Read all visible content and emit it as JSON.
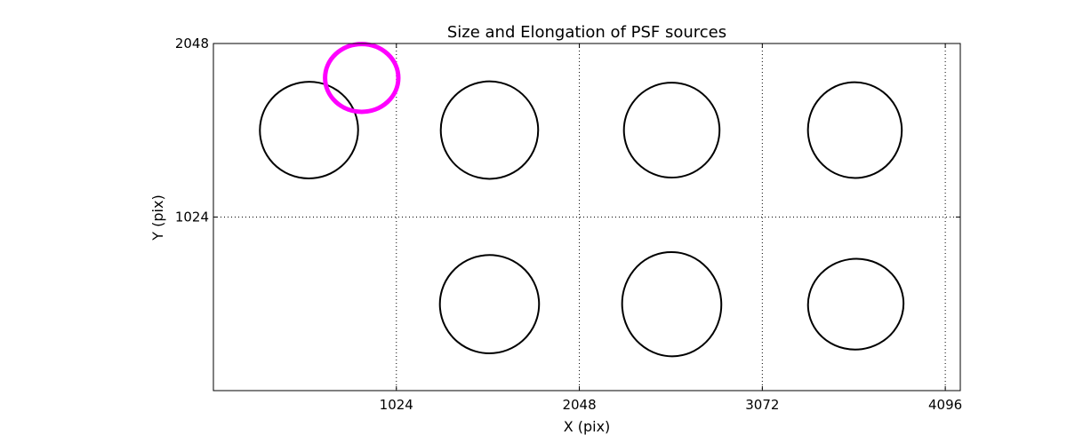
{
  "chart_data": {
    "type": "scatter",
    "title": "Size and Elongation of PSF sources",
    "xlabel": "X (pix)",
    "ylabel": "Y (pix)",
    "xlim": [
      0,
      4180
    ],
    "ylim": [
      0,
      2048
    ],
    "xticks": [
      1024,
      2048,
      3072,
      4096
    ],
    "yticks": [
      1024,
      2048
    ],
    "grid": true,
    "grid_style": "dotted",
    "sources": [
      {
        "x": 535,
        "y": 1537,
        "width": 550,
        "height": 570,
        "angle": 10,
        "color": "#000000"
      },
      {
        "x": 1545,
        "y": 1537,
        "width": 545,
        "height": 575,
        "angle": 8,
        "color": "#000000"
      },
      {
        "x": 2565,
        "y": 1537,
        "width": 535,
        "height": 560,
        "angle": 5,
        "color": "#000000"
      },
      {
        "x": 3590,
        "y": 1537,
        "width": 525,
        "height": 565,
        "angle": 8,
        "color": "#000000"
      },
      {
        "x": 1545,
        "y": 510,
        "width": 555,
        "height": 580,
        "angle": 5,
        "color": "#000000"
      },
      {
        "x": 2565,
        "y": 510,
        "width": 555,
        "height": 615,
        "angle": 5,
        "color": "#000000"
      },
      {
        "x": 3595,
        "y": 510,
        "width": 535,
        "height": 535,
        "angle": 8,
        "color": "#000000"
      },
      {
        "x": 830,
        "y": 1845,
        "width": 410,
        "height": 400,
        "angle": 0,
        "color": "#ff00ff"
      }
    ]
  }
}
